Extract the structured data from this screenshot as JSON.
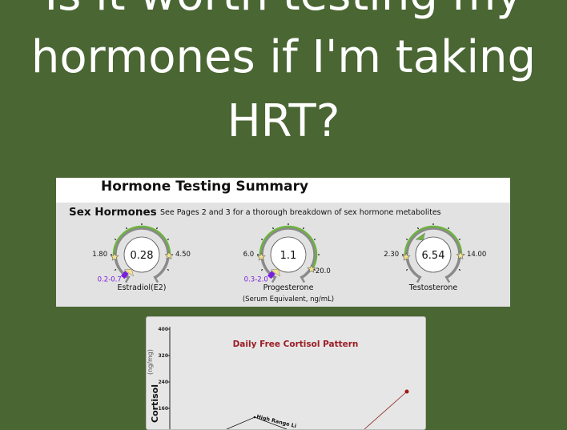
{
  "headline": {
    "line1": "Is it worth testing my",
    "line2": "hormones if I'm taking",
    "line3": "HRT?"
  },
  "report": {
    "title": "Hormone Testing Summary",
    "section_title": "Sex Hormones",
    "section_note": "See Pages 2 and 3 for a thorough breakdown of sex hormone metabolites",
    "gauges": [
      {
        "name": "Estradiol(E2)",
        "subtitle": "",
        "value": "0.28",
        "low": "1.80",
        "high": "4.50",
        "extra_high": "",
        "range": "0.2-0.7"
      },
      {
        "name": "Progesterone",
        "subtitle": "(Serum Equivalent, ng/mL)",
        "value": "1.1",
        "low": "6.0",
        "high": "",
        "extra_high": "20.0",
        "range": "0.3-2.0"
      },
      {
        "name": "Testosterone",
        "subtitle": "",
        "value": "6.54",
        "low": "2.30",
        "high": "14.00",
        "extra_high": "",
        "range": ""
      }
    ],
    "colors": {
      "in_range": "#6db33f",
      "arc": "#8a8a8a",
      "marker": "#f3e38a",
      "range_marker": "#7a1fe0",
      "pointer_in_range": "#6db33f"
    }
  },
  "chart_data": {
    "type": "line",
    "title": "Daily Free Cortisol Pattern",
    "ylabel": "Cortisol",
    "yunit": "(ng/mg)",
    "yticks": [
      160,
      240,
      320,
      400
    ],
    "annotation": "High Range Li",
    "series": [
      {
        "values": [
          131
        ],
        "color": "#000000"
      },
      {
        "values": [
          208
        ],
        "color": "#8b1a1a"
      }
    ]
  }
}
